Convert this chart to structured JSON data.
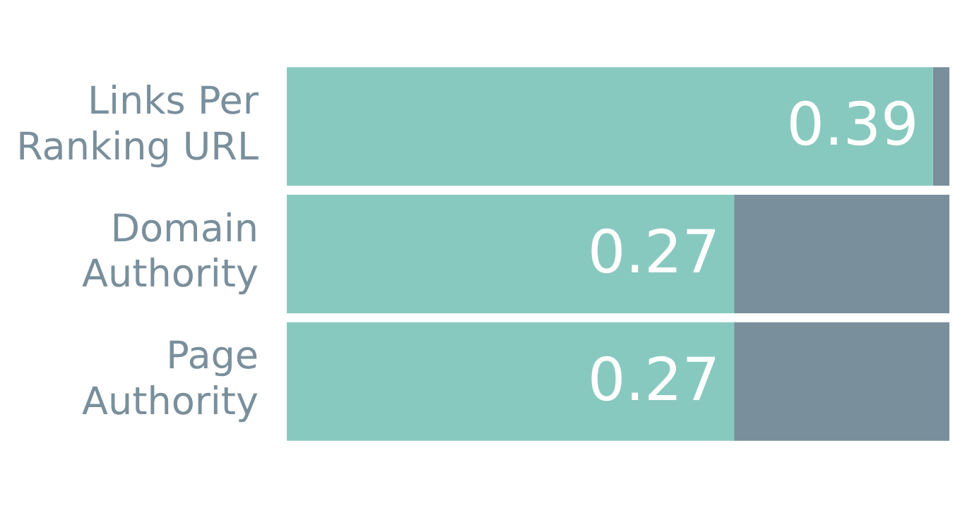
{
  "chart_data": {
    "type": "bar",
    "orientation": "horizontal",
    "stacked": true,
    "categories": [
      "Links Per Ranking URL",
      "Domain Authority",
      "Page Authority"
    ],
    "series": [
      {
        "color": "#88c9bf",
        "values": [
          0.39,
          0.27,
          0.27
        ],
        "value_labels": [
          "0.39",
          "0.27",
          "0.27"
        ]
      },
      {
        "color": "#7a8f9c",
        "values": [
          0.01,
          0.13,
          0.13
        ],
        "value_labels": [
          null,
          null,
          null
        ]
      }
    ],
    "xlim": [
      0,
      0.4
    ],
    "tick_labels": "y",
    "legend": false
  }
}
